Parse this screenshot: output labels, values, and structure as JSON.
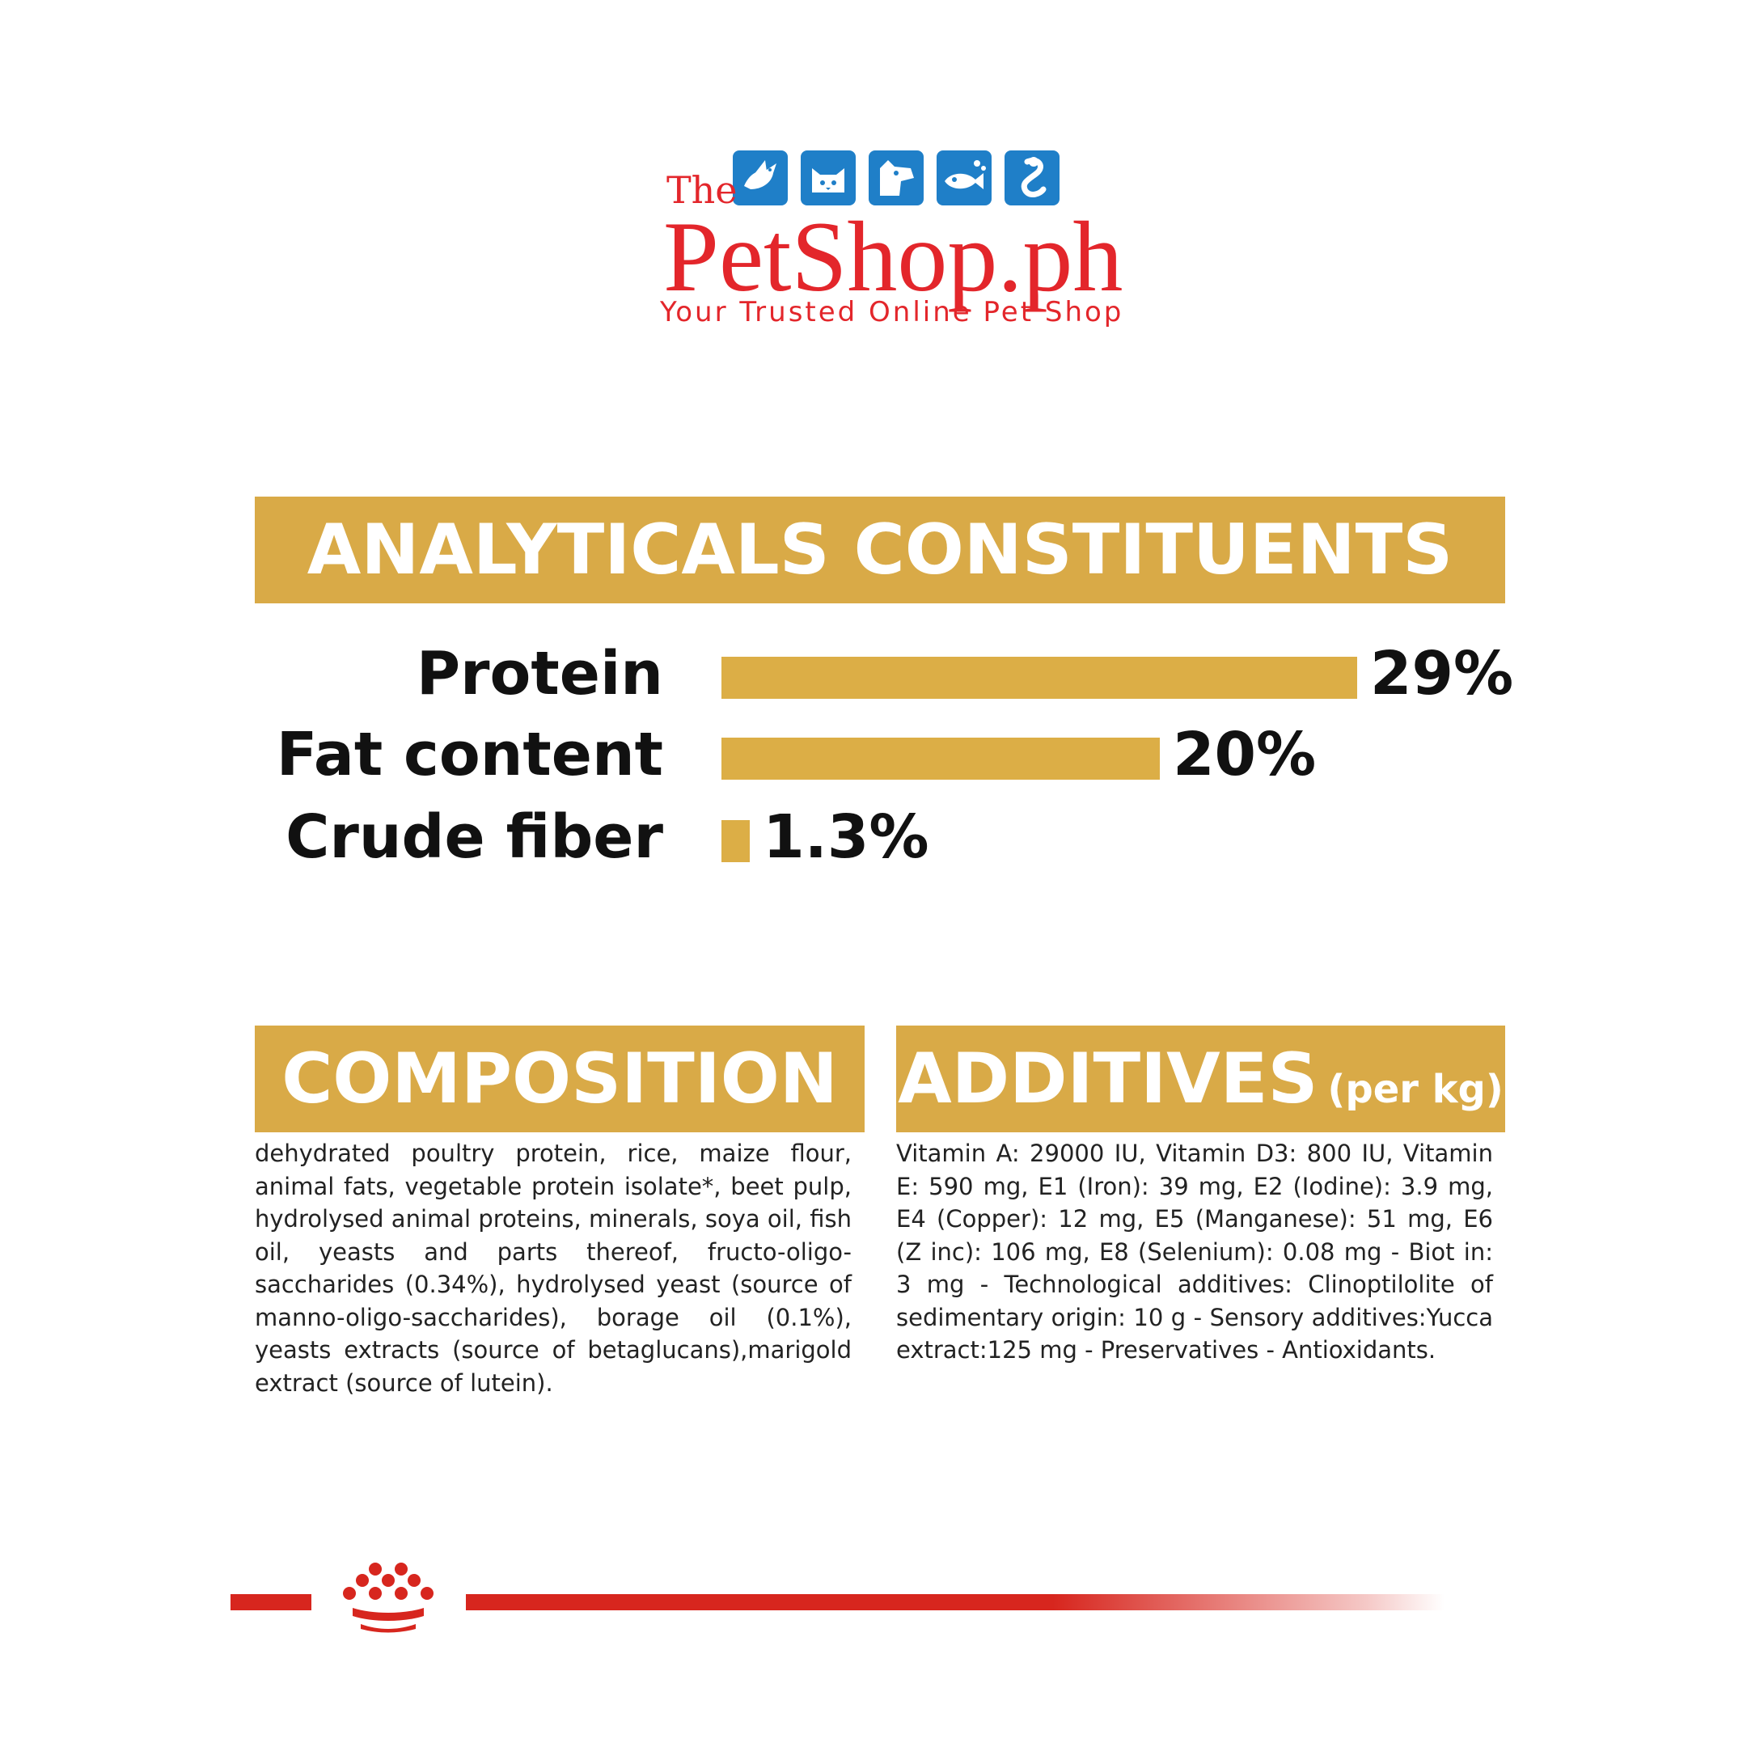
{
  "logo": {
    "the": "The",
    "name": "PetShop.ph",
    "tagline": "Your Trusted Online Pet Shop",
    "icons": [
      "bird-icon",
      "cat-icon",
      "dog-icon",
      "fish-icon",
      "snake-icon"
    ],
    "icon_color": "#1f7fc8",
    "text_color": "#e3262b"
  },
  "analytical": {
    "title": "ANALYTICALS CONSTITUENTS",
    "rows": [
      {
        "label": "Protein",
        "value": "29%",
        "percent": 29
      },
      {
        "label": "Fat content",
        "value": "20%",
        "percent": 20
      },
      {
        "label": "Crude fiber",
        "value": "1.3%",
        "percent": 1.3
      }
    ]
  },
  "composition": {
    "title": "COMPOSITION",
    "text": "dehydrated poultry protein, rice, maize flour, animal fats, vegetable protein isolate*, beet pulp, hydrolysed animal proteins, minerals, soya oil, fish oil, yeasts and parts thereof, fructo-oligo-saccharides (0.34%), hydrolysed yeast (source of manno-oligo-saccharides), borage oil (0.1%), yeasts extracts (source of betaglucans),marigold extract (source of lutein)."
  },
  "additives": {
    "title": "ADDITIVES",
    "subtitle": "(per kg)",
    "text": "Vitamin A: 29000 IU, Vitamin D3: 800 IU, Vitamin E: 590 mg, E1 (Iron): 39 mg, E2 (Iodine): 3.9 mg, E4 (Copper): 12 mg, E5 (Manganese): 51 mg, E6 (Z inc): 106 mg, E8 (Selenium): 0.08 mg - Biot in: 3 mg - Technological additives: Clinoptilolite of sedimentary origin: 10 g - Sensory additives:Yucca extract:125 mg - Preservatives - Antioxidants."
  },
  "colors": {
    "accent": "#d9aa47",
    "footer_red": "#d7261e"
  }
}
